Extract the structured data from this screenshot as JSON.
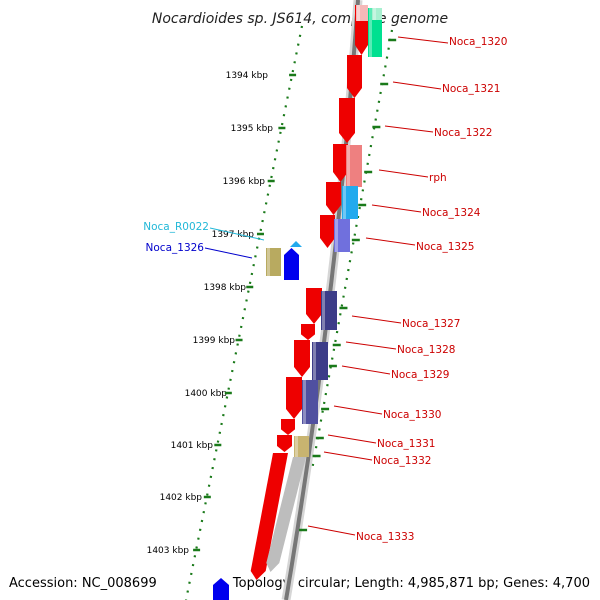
{
  "title": "Nocardioides sp. JS614, complete genome",
  "accession": "Accession: NC_008699",
  "stats": "Topology: circular; Length: 4,985,871 bp; Genes: 4,700",
  "colors": {
    "backbone": "#777777",
    "ruler": "#1a7a1a",
    "label_red": "#cc0000",
    "label_cyan": "#22b8d8",
    "label_blue": "#0000cc"
  },
  "kbp_ticks": [
    "1394 kbp",
    "1395 kbp",
    "1396 kbp",
    "1397 kbp",
    "1398 kbp",
    "1399 kbp",
    "1400 kbp",
    "1401 kbp",
    "1402 kbp",
    "1403 kbp"
  ],
  "genes": [
    {
      "label": "Noca_1320",
      "label_color": "red"
    },
    {
      "label": "Noca_1321",
      "label_color": "red"
    },
    {
      "label": "Noca_1322",
      "label_color": "red"
    },
    {
      "label": "rph",
      "label_color": "red"
    },
    {
      "label": "Noca_1324",
      "label_color": "red"
    },
    {
      "label": "Noca_1325",
      "label_color": "red"
    },
    {
      "label": "Noca_R0022",
      "label_color": "cyan"
    },
    {
      "label": "Noca_1326",
      "label_color": "blue"
    },
    {
      "label": "Noca_1327",
      "label_color": "red"
    },
    {
      "label": "Noca_1328",
      "label_color": "red"
    },
    {
      "label": "Noca_1329",
      "label_color": "red"
    },
    {
      "label": "Noca_1330",
      "label_color": "red"
    },
    {
      "label": "Noca_1331",
      "label_color": "red"
    },
    {
      "label": "Noca_1332",
      "label_color": "red"
    },
    {
      "label": "Noca_1333",
      "label_color": "red"
    }
  ]
}
